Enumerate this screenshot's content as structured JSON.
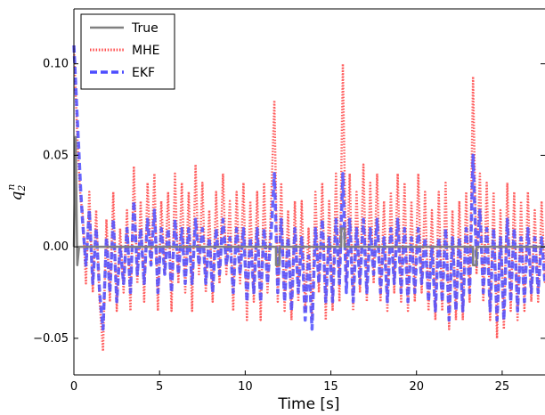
{
  "chart_data": {
    "type": "line",
    "title": "",
    "xlabel": "Time [s]",
    "ylabel": "q",
    "ylabel_sub": "2",
    "ylabel_sup": "n",
    "xlim": [
      0,
      27.5
    ],
    "ylim": [
      -0.07,
      0.13
    ],
    "xticks": [
      0,
      5,
      10,
      15,
      20,
      25
    ],
    "xtick_labels": [
      "0",
      "5",
      "10",
      "15",
      "20",
      "25"
    ],
    "yticks": [
      0.1,
      0.05,
      0.0,
      -0.05
    ],
    "ytick_labels": [
      "0.10",
      "0.05",
      "0.00",
      "−0.05"
    ],
    "grid": false,
    "legend_position": "top-left",
    "series": [
      {
        "name": "True",
        "style": "solid",
        "color": "#808080",
        "x": [
          0,
          0.1,
          0.2,
          0.3,
          11.8,
          11.8,
          12.0,
          12.0,
          15.6,
          15.6,
          15.8,
          15.8,
          23.3,
          23.3,
          23.5,
          23.5,
          27.5
        ],
        "y": [
          0.0,
          0.06,
          -0.01,
          0.0,
          0.0,
          -0.01,
          -0.01,
          0.0,
          0.0,
          0.01,
          0.01,
          0.0,
          0.0,
          -0.01,
          -0.01,
          0.0,
          0.0
        ]
      },
      {
        "name": "MHE",
        "style": "dotted",
        "color": "#ff4d4d",
        "x": [
          0.0,
          0.1,
          0.2,
          0.3,
          0.4,
          0.5,
          0.7,
          0.9,
          1.1,
          1.3,
          1.5,
          1.7,
          1.9,
          2.1,
          2.3,
          2.5,
          2.7,
          2.9,
          3.1,
          3.3,
          3.5,
          3.7,
          3.9,
          4.1,
          4.3,
          4.5,
          4.7,
          4.9,
          5.1,
          5.3,
          5.5,
          5.7,
          5.9,
          6.1,
          6.3,
          6.5,
          6.7,
          6.9,
          7.1,
          7.3,
          7.5,
          7.7,
          7.9,
          8.1,
          8.3,
          8.5,
          8.7,
          8.9,
          9.1,
          9.3,
          9.5,
          9.7,
          9.9,
          10.1,
          10.3,
          10.5,
          10.7,
          10.9,
          11.1,
          11.3,
          11.5,
          11.7,
          11.9,
          12.1,
          12.3,
          12.5,
          12.7,
          12.9,
          13.1,
          13.3,
          13.5,
          13.7,
          13.9,
          14.1,
          14.3,
          14.5,
          14.7,
          14.9,
          15.1,
          15.3,
          15.5,
          15.7,
          15.9,
          16.1,
          16.3,
          16.5,
          16.7,
          16.9,
          17.1,
          17.3,
          17.5,
          17.7,
          17.9,
          18.1,
          18.3,
          18.5,
          18.7,
          18.9,
          19.1,
          19.3,
          19.5,
          19.7,
          19.9,
          20.1,
          20.3,
          20.5,
          20.7,
          20.9,
          21.1,
          21.3,
          21.5,
          21.7,
          21.9,
          22.1,
          22.3,
          22.5,
          22.7,
          22.9,
          23.1,
          23.3,
          23.5,
          23.7,
          23.9,
          24.1,
          24.3,
          24.5,
          24.7,
          24.9,
          25.1,
          25.3,
          25.5,
          25.7,
          25.9,
          26.1,
          26.3,
          26.5,
          26.7,
          26.9,
          27.1,
          27.3,
          27.5
        ],
        "y": [
          0.11,
          0.085,
          0.06,
          0.04,
          0.025,
          0.02,
          -0.02,
          0.03,
          -0.025,
          0.02,
          -0.03,
          -0.057,
          0.015,
          -0.03,
          0.03,
          -0.035,
          0.01,
          -0.025,
          0.02,
          -0.035,
          0.044,
          -0.02,
          0.025,
          -0.03,
          0.035,
          -0.01,
          0.04,
          -0.035,
          0.025,
          -0.015,
          0.03,
          -0.035,
          0.04,
          -0.02,
          0.035,
          -0.025,
          0.03,
          -0.035,
          0.045,
          -0.015,
          0.035,
          -0.025,
          0.02,
          -0.03,
          0.03,
          -0.02,
          0.04,
          -0.015,
          0.025,
          -0.035,
          0.03,
          -0.02,
          0.035,
          -0.04,
          0.025,
          -0.03,
          0.03,
          -0.04,
          0.035,
          -0.025,
          0.02,
          0.08,
          -0.03,
          0.035,
          -0.035,
          0.02,
          -0.04,
          0.025,
          -0.03,
          0.025,
          -0.035,
          0.01,
          -0.04,
          0.03,
          -0.025,
          0.035,
          -0.04,
          0.025,
          -0.035,
          0.04,
          -0.03,
          0.1,
          -0.02,
          0.04,
          -0.035,
          0.03,
          -0.025,
          0.045,
          -0.03,
          0.035,
          -0.02,
          0.04,
          -0.03,
          0.025,
          -0.035,
          0.03,
          -0.025,
          0.04,
          -0.03,
          0.035,
          -0.035,
          0.025,
          -0.03,
          0.04,
          -0.025,
          0.03,
          -0.035,
          0.02,
          -0.04,
          0.03,
          -0.035,
          0.035,
          -0.045,
          0.02,
          -0.04,
          0.025,
          -0.04,
          0.03,
          -0.03,
          0.093,
          -0.015,
          0.04,
          -0.03,
          0.035,
          -0.04,
          0.03,
          -0.05,
          0.02,
          -0.045,
          0.035,
          -0.035,
          0.03,
          -0.04,
          0.025,
          -0.035,
          0.03,
          -0.03,
          0.02,
          -0.03,
          0.025,
          -0.02
        ]
      },
      {
        "name": "EKF",
        "style": "dashed",
        "color": "#4d4dff",
        "x": [
          0.0,
          0.1,
          0.2,
          0.3,
          0.4,
          0.5,
          0.7,
          0.9,
          1.1,
          1.3,
          1.5,
          1.7,
          1.9,
          2.1,
          2.3,
          2.5,
          2.7,
          2.9,
          3.1,
          3.3,
          3.5,
          3.7,
          3.9,
          4.1,
          4.3,
          4.5,
          4.7,
          4.9,
          5.1,
          5.3,
          5.5,
          5.7,
          5.9,
          6.1,
          6.3,
          6.5,
          6.7,
          6.9,
          7.1,
          7.3,
          7.5,
          7.7,
          7.9,
          8.1,
          8.3,
          8.5,
          8.7,
          8.9,
          9.1,
          9.3,
          9.5,
          9.7,
          9.9,
          10.1,
          10.3,
          10.5,
          10.7,
          10.9,
          11.1,
          11.3,
          11.5,
          11.7,
          11.9,
          12.1,
          12.3,
          12.5,
          12.7,
          12.9,
          13.1,
          13.3,
          13.5,
          13.7,
          13.9,
          14.1,
          14.3,
          14.5,
          14.7,
          14.9,
          15.1,
          15.3,
          15.5,
          15.7,
          15.9,
          16.1,
          16.3,
          16.5,
          16.7,
          16.9,
          17.1,
          17.3,
          17.5,
          17.7,
          17.9,
          18.1,
          18.3,
          18.5,
          18.7,
          18.9,
          19.1,
          19.3,
          19.5,
          19.7,
          19.9,
          20.1,
          20.3,
          20.5,
          20.7,
          20.9,
          21.1,
          21.3,
          21.5,
          21.7,
          21.9,
          22.1,
          22.3,
          22.5,
          22.7,
          22.9,
          23.1,
          23.3,
          23.5,
          23.7,
          23.9,
          24.1,
          24.3,
          24.5,
          24.7,
          24.9,
          25.1,
          25.3,
          25.5,
          25.7,
          25.9,
          26.1,
          26.3,
          26.5,
          26.7,
          26.9,
          27.1,
          27.3,
          27.5
        ],
        "y": [
          0.11,
          0.09,
          0.07,
          0.05,
          0.03,
          0.015,
          -0.01,
          0.02,
          -0.02,
          0.01,
          -0.025,
          -0.045,
          0.005,
          -0.025,
          0.015,
          -0.03,
          0.0,
          -0.02,
          0.01,
          -0.025,
          0.025,
          -0.015,
          0.01,
          -0.02,
          0.015,
          -0.01,
          0.02,
          -0.025,
          0.01,
          -0.015,
          0.01,
          -0.025,
          0.015,
          -0.015,
          0.01,
          -0.02,
          0.01,
          -0.02,
          0.015,
          -0.01,
          0.01,
          -0.02,
          0.005,
          -0.025,
          0.01,
          -0.015,
          0.015,
          -0.01,
          0.005,
          -0.025,
          0.01,
          -0.015,
          0.01,
          -0.03,
          0.005,
          -0.025,
          0.01,
          -0.03,
          0.01,
          -0.02,
          0.005,
          0.04,
          -0.025,
          0.015,
          -0.03,
          0.005,
          -0.035,
          0.01,
          -0.025,
          0.005,
          -0.04,
          -0.005,
          -0.045,
          0.01,
          -0.02,
          0.015,
          -0.03,
          0.005,
          -0.03,
          0.015,
          -0.02,
          0.04,
          -0.025,
          0.015,
          -0.03,
          0.01,
          -0.02,
          0.015,
          -0.025,
          0.01,
          -0.015,
          0.015,
          -0.025,
          0.005,
          -0.03,
          0.01,
          -0.02,
          0.015,
          -0.025,
          0.01,
          -0.03,
          0.005,
          -0.025,
          0.01,
          -0.02,
          0.005,
          -0.03,
          0.0,
          -0.035,
          0.005,
          -0.03,
          0.01,
          -0.04,
          0.005,
          -0.035,
          0.005,
          -0.035,
          0.01,
          -0.025,
          0.05,
          -0.01,
          0.02,
          -0.025,
          0.01,
          -0.035,
          0.01,
          -0.04,
          0.005,
          -0.04,
          0.015,
          -0.03,
          0.01,
          -0.035,
          0.005,
          -0.03,
          0.01,
          -0.025,
          0.005,
          -0.025,
          0.005,
          -0.02
        ]
      }
    ]
  }
}
